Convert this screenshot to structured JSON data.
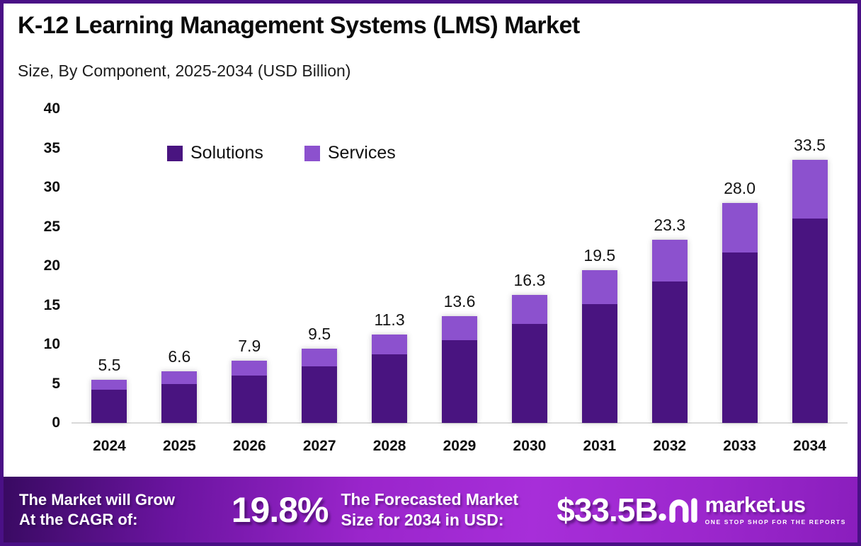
{
  "page": {
    "title": "K-12 Learning Management Systems (LMS) Market",
    "subtitle": "Size, By Component, 2025-2034 (USD Billion)"
  },
  "chart_data": {
    "type": "bar",
    "stacked": true,
    "title": "K-12 Learning Management Systems (LMS) Market Size, By Component, 2025-2034 (USD Billion)",
    "categories": [
      "2024",
      "2025",
      "2026",
      "2027",
      "2028",
      "2029",
      "2030",
      "2031",
      "2032",
      "2033",
      "2034"
    ],
    "series": [
      {
        "name": "Solutions",
        "color": "#491480",
        "values": [
          4.2,
          5.0,
          6.0,
          7.2,
          8.7,
          10.5,
          12.6,
          15.1,
          18.0,
          21.7,
          26.0
        ]
      },
      {
        "name": "Services",
        "color": "#8C51CE",
        "values": [
          1.3,
          1.6,
          1.9,
          2.3,
          2.6,
          3.1,
          3.7,
          4.4,
          5.3,
          6.3,
          7.5
        ]
      }
    ],
    "totals": [
      5.5,
      6.6,
      7.9,
      9.5,
      11.3,
      13.6,
      16.3,
      19.5,
      23.3,
      28.0,
      33.5
    ],
    "total_labels": [
      "5.5",
      "6.6",
      "7.9",
      "9.5",
      "11.3",
      "13.6",
      "16.3",
      "19.5",
      "23.3",
      "28.0",
      "33.5"
    ],
    "xlabel": "",
    "ylabel": "",
    "ylim": [
      0,
      40
    ],
    "yticks": [
      0,
      5,
      10,
      15,
      20,
      25,
      30,
      35,
      40
    ],
    "grid": false,
    "legend_position": "inside-top-left"
  },
  "banner": {
    "cagr_label_line1": "The Market will Grow",
    "cagr_label_line2": "At the CAGR of:",
    "cagr_value": "19.8%",
    "forecast_label_line1": "The Forecasted Market",
    "forecast_label_line2": "Size for 2034 in USD:",
    "forecast_value": "$33.5B",
    "logo_name": "market.us",
    "logo_tagline": "ONE STOP SHOP FOR THE REPORTS"
  },
  "colors": {
    "solutions": "#491480",
    "services": "#8C51CE",
    "page_border": "#4A1086",
    "baseline": "#D9D9D9",
    "banner_gradient_start": "#390A62",
    "banner_gradient_mid": "#A72ED9",
    "banner_gradient_end": "#8A1EBD",
    "text": "#0D0D0D",
    "banner_text": "#FFFFFF"
  }
}
